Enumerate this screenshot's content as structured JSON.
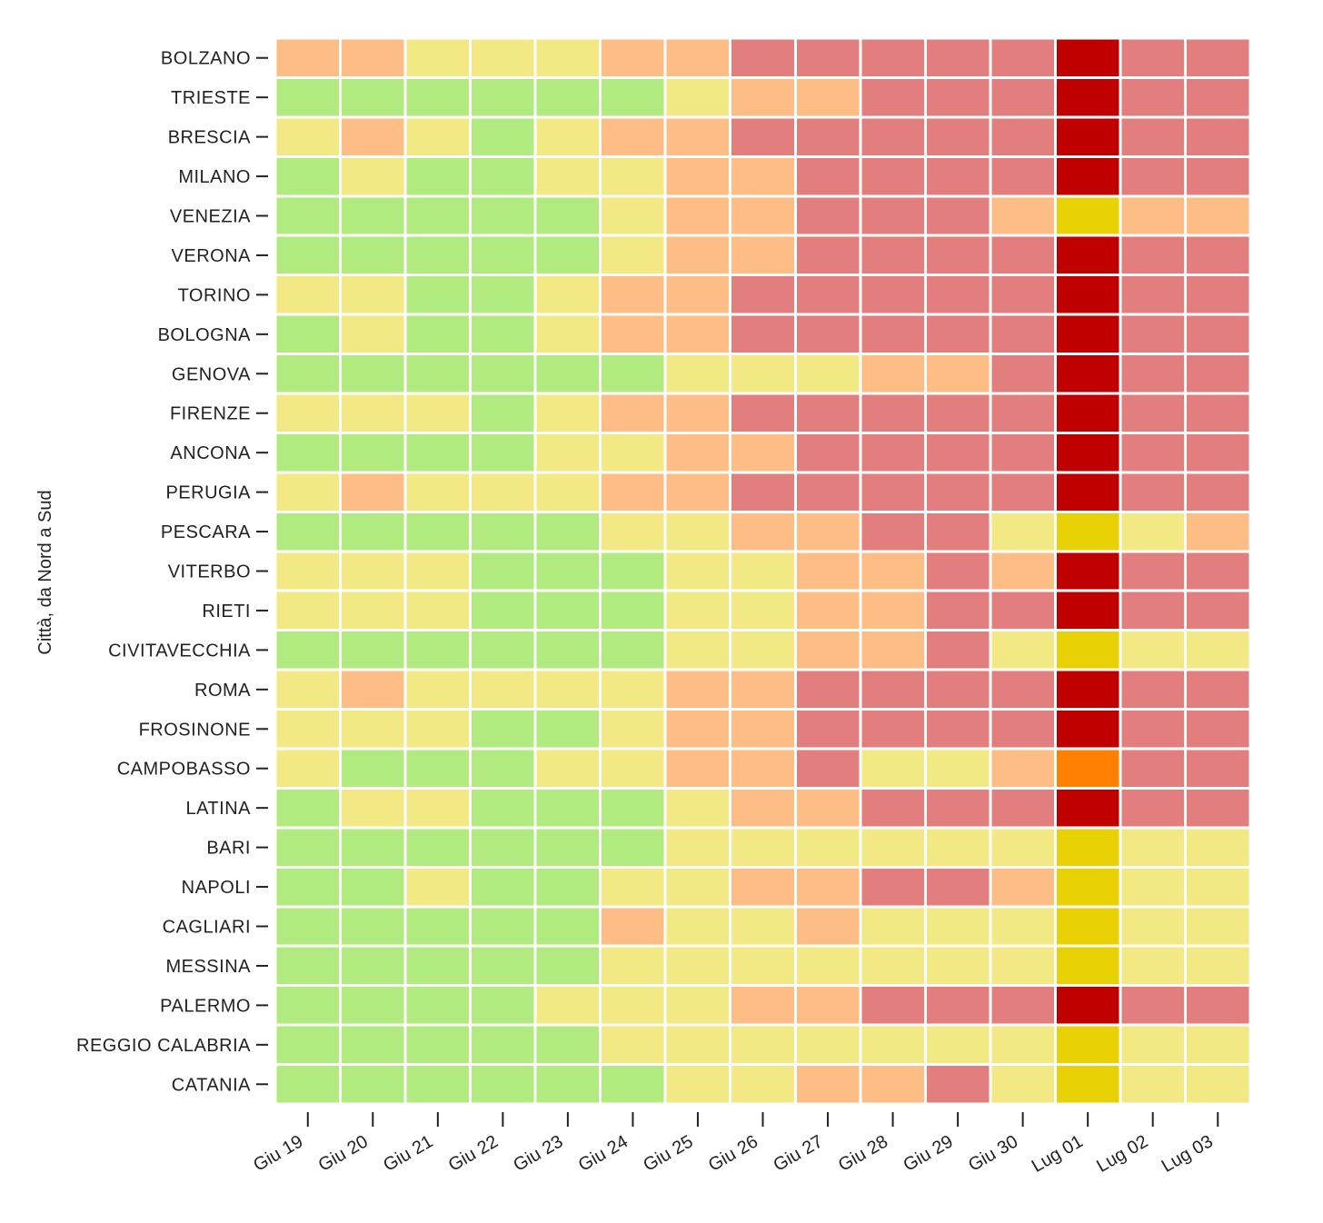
{
  "chart_data": {
    "type": "heatmap",
    "title": "",
    "xlabel": "",
    "ylabel": "Città, da Nord a Sud",
    "x": [
      "Giu 19",
      "Giu 20",
      "Giu 21",
      "Giu 22",
      "Giu 23",
      "Giu 24",
      "Giu 25",
      "Giu 26",
      "Giu 27",
      "Giu 28",
      "Giu 29",
      "Giu 30",
      "Lug 01",
      "Lug 02",
      "Lug 03"
    ],
    "y": [
      "BOLZANO",
      "TRIESTE",
      "BRESCIA",
      "MILANO",
      "VENEZIA",
      "VERONA",
      "TORINO",
      "BOLOGNA",
      "GENOVA",
      "FIRENZE",
      "ANCONA",
      "PERUGIA",
      "PESCARA",
      "VITERBO",
      "RIETI",
      "CIVITAVECCHIA",
      "ROMA",
      "FROSINONE",
      "CAMPOBASSO",
      "LATINA",
      "BARI",
      "NAPOLI",
      "CAGLIARI",
      "MESSINA",
      "PALERMO",
      "REGGIO CALABRIA",
      "CATANIA"
    ],
    "levels": {
      "0": "#b1ea7f",
      "1": "#f2e985",
      "2": "#fdbd84",
      "3": "#e27f7e",
      "4": "#e8d205",
      "5": "#ff8003",
      "6": "#c00000"
    },
    "values": [
      [
        2,
        2,
        1,
        1,
        1,
        2,
        2,
        3,
        3,
        3,
        3,
        3,
        6,
        3,
        3
      ],
      [
        0,
        0,
        0,
        0,
        0,
        0,
        1,
        2,
        2,
        3,
        3,
        3,
        6,
        3,
        3
      ],
      [
        1,
        2,
        1,
        0,
        1,
        2,
        2,
        3,
        3,
        3,
        3,
        3,
        6,
        3,
        3
      ],
      [
        0,
        1,
        0,
        0,
        1,
        1,
        2,
        2,
        3,
        3,
        3,
        3,
        6,
        3,
        3
      ],
      [
        0,
        0,
        0,
        0,
        0,
        1,
        2,
        2,
        3,
        3,
        3,
        2,
        4,
        2,
        2
      ],
      [
        0,
        0,
        0,
        0,
        0,
        1,
        2,
        2,
        3,
        3,
        3,
        3,
        6,
        3,
        3
      ],
      [
        1,
        1,
        0,
        0,
        1,
        2,
        2,
        3,
        3,
        3,
        3,
        3,
        6,
        3,
        3
      ],
      [
        0,
        1,
        0,
        0,
        1,
        2,
        2,
        3,
        3,
        3,
        3,
        3,
        6,
        3,
        3
      ],
      [
        0,
        0,
        0,
        0,
        0,
        0,
        1,
        1,
        1,
        2,
        2,
        3,
        6,
        3,
        3
      ],
      [
        1,
        1,
        1,
        0,
        1,
        2,
        2,
        3,
        3,
        3,
        3,
        3,
        6,
        3,
        3
      ],
      [
        0,
        0,
        0,
        0,
        1,
        1,
        2,
        2,
        3,
        3,
        3,
        3,
        6,
        3,
        3
      ],
      [
        1,
        2,
        1,
        1,
        1,
        2,
        2,
        3,
        3,
        3,
        3,
        3,
        6,
        3,
        3
      ],
      [
        0,
        0,
        0,
        0,
        0,
        1,
        1,
        2,
        2,
        3,
        3,
        1,
        4,
        1,
        2
      ],
      [
        1,
        1,
        1,
        0,
        0,
        0,
        1,
        1,
        2,
        2,
        3,
        2,
        6,
        3,
        3
      ],
      [
        1,
        1,
        1,
        0,
        0,
        0,
        1,
        1,
        2,
        2,
        3,
        3,
        6,
        3,
        3
      ],
      [
        0,
        0,
        0,
        0,
        0,
        0,
        1,
        1,
        2,
        2,
        3,
        1,
        4,
        1,
        1
      ],
      [
        1,
        2,
        1,
        1,
        1,
        1,
        2,
        2,
        3,
        3,
        3,
        3,
        6,
        3,
        3
      ],
      [
        1,
        1,
        1,
        0,
        0,
        1,
        2,
        2,
        3,
        3,
        3,
        3,
        6,
        3,
        3
      ],
      [
        1,
        0,
        0,
        0,
        1,
        1,
        2,
        2,
        3,
        1,
        1,
        2,
        5,
        3,
        3
      ],
      [
        0,
        1,
        1,
        0,
        0,
        0,
        1,
        2,
        2,
        3,
        3,
        3,
        6,
        3,
        3
      ],
      [
        0,
        0,
        0,
        0,
        0,
        0,
        1,
        1,
        1,
        1,
        1,
        1,
        4,
        1,
        1
      ],
      [
        0,
        0,
        1,
        0,
        0,
        1,
        1,
        2,
        2,
        3,
        3,
        2,
        4,
        1,
        1
      ],
      [
        0,
        0,
        0,
        0,
        0,
        2,
        1,
        1,
        2,
        1,
        1,
        1,
        4,
        1,
        1
      ],
      [
        0,
        0,
        0,
        0,
        0,
        1,
        1,
        1,
        1,
        1,
        1,
        1,
        4,
        1,
        1
      ],
      [
        0,
        0,
        0,
        0,
        1,
        1,
        1,
        2,
        2,
        3,
        3,
        3,
        6,
        3,
        3
      ],
      [
        0,
        0,
        0,
        0,
        0,
        1,
        1,
        1,
        1,
        1,
        1,
        1,
        4,
        1,
        1
      ],
      [
        0,
        0,
        0,
        0,
        0,
        0,
        1,
        1,
        2,
        2,
        3,
        1,
        4,
        1,
        1
      ]
    ],
    "legend": "none",
    "grid": false
  }
}
